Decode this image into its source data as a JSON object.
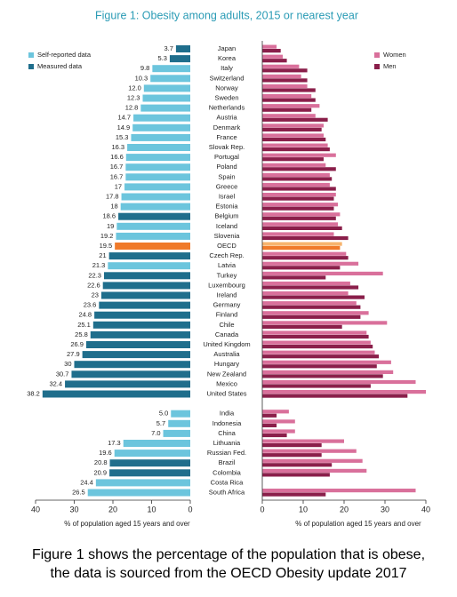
{
  "title": "Figure 1: Obesity among adults, 2015 or nearest year",
  "caption": "Figure 1 shows the percentage of the population that is obese, the data is sourced from the OECD Obesity update 2017",
  "chart_data": [
    {
      "type": "bar",
      "orientation": "horizontal",
      "categories": [
        "Japan",
        "Korea",
        "Italy",
        "Switzerland",
        "Norway",
        "Sweden",
        "Netherlands",
        "Austria",
        "Denmark",
        "France",
        "Slovak Rep.",
        "Portugal",
        "Poland",
        "Spain",
        "Greece",
        "Israel",
        "Estonia",
        "Belgium",
        "Iceland",
        "Slovenia",
        "OECD",
        "Czech Rep.",
        "Latvia",
        "Turkey",
        "Luxembourg",
        "Ireland",
        "Germany",
        "Finland",
        "Chile",
        "Canada",
        "United Kingdom",
        "Australia",
        "Hungary",
        "New Zealand",
        "Mexico",
        "United States",
        null,
        "India",
        "Indonesia",
        "China",
        "Lithuania",
        "Russian Fed.",
        "Brazil",
        "Colombia",
        "Costa Rica",
        "South Africa"
      ],
      "values": [
        3.7,
        5.3,
        9.8,
        10.3,
        12.0,
        12.3,
        12.8,
        14.7,
        14.9,
        15.3,
        16.3,
        16.6,
        16.7,
        16.7,
        17,
        17.8,
        18,
        18.6,
        19,
        19.2,
        19.5,
        21,
        21.3,
        22.3,
        22.6,
        23,
        23.6,
        24.8,
        25.1,
        25.8,
        26.9,
        27.9,
        30,
        30.7,
        32.4,
        38.2,
        null,
        5.0,
        5.7,
        7.0,
        17.3,
        19.6,
        20.8,
        20.9,
        24.4,
        26.5
      ],
      "value_labels": [
        "3.7",
        "5.3",
        "9.8",
        "10.3",
        "12.0",
        "12.3",
        "12.8",
        "14.7",
        "14.9",
        "15.3",
        "16.3",
        "16.6",
        "16.7",
        "16.7",
        "17",
        "17.8",
        "18",
        "18.6",
        "19",
        "19.2",
        "19.5",
        "21",
        "21.3",
        "22.3",
        "22.6",
        "23",
        "23.6",
        "24.8",
        "25.1",
        "25.8",
        "26.9",
        "27.9",
        "30",
        "30.7",
        "32.4",
        "38.2",
        null,
        "5.0",
        "5.7",
        "7.0",
        "17.3",
        "19.6",
        "20.8",
        "20.9",
        "24.4",
        "26.5"
      ],
      "bar_colors": [
        "#1f6e8c",
        "#1f6e8c",
        "#6cc5dd",
        "#6cc5dd",
        "#6cc5dd",
        "#6cc5dd",
        "#6cc5dd",
        "#6cc5dd",
        "#6cc5dd",
        "#6cc5dd",
        "#6cc5dd",
        "#6cc5dd",
        "#6cc5dd",
        "#6cc5dd",
        "#6cc5dd",
        "#6cc5dd",
        "#6cc5dd",
        "#1f6e8c",
        "#6cc5dd",
        "#6cc5dd",
        "#f07a2a",
        "#1f6e8c",
        "#6cc5dd",
        "#1f6e8c",
        "#1f6e8c",
        "#1f6e8c",
        "#1f6e8c",
        "#1f6e8c",
        "#1f6e8c",
        "#1f6e8c",
        "#1f6e8c",
        "#1f6e8c",
        "#1f6e8c",
        "#1f6e8c",
        "#1f6e8c",
        "#1f6e8c",
        null,
        "#6cc5dd",
        "#6cc5dd",
        "#6cc5dd",
        "#6cc5dd",
        "#6cc5dd",
        "#1f6e8c",
        "#1f6e8c",
        "#6cc5dd",
        "#6cc5dd"
      ],
      "legend": [
        {
          "name": "Self-reported data",
          "color": "#6cc5dd"
        },
        {
          "name": "Measured data",
          "color": "#1f6e8c"
        }
      ],
      "xlim": [
        40,
        0
      ],
      "xticks": [
        40,
        30,
        20,
        10,
        0
      ],
      "x_label": "% of population aged 15 years and over"
    },
    {
      "type": "grouped-bar",
      "orientation": "horizontal",
      "series": [
        {
          "name": "Women",
          "color": "#d9709b",
          "highlight_color": "#f7b46e",
          "values": [
            3.5,
            5,
            9,
            9.5,
            11,
            12,
            14,
            13,
            15,
            15,
            16,
            18,
            15.5,
            16.5,
            16.5,
            18,
            18.5,
            19,
            18.5,
            17.5,
            19.5,
            20.5,
            23.5,
            29.5,
            21.5,
            21,
            23,
            26,
            30.5,
            25.5,
            26.5,
            27.5,
            31.5,
            32,
            37.5,
            40,
            null,
            6.5,
            8,
            8,
            20,
            23,
            24.5,
            25.5,
            null,
            37.5
          ]
        },
        {
          "name": "Men",
          "color": "#8a1f4a",
          "highlight_color": "#f07a2a",
          "values": [
            4.5,
            6,
            11,
            11,
            13,
            13,
            12,
            16,
            14.5,
            15.5,
            16.5,
            15,
            18,
            17,
            18,
            17.5,
            17.5,
            18,
            19.5,
            21,
            19,
            21,
            19,
            15.5,
            23.5,
            25,
            24,
            24,
            19.5,
            26,
            27,
            28.5,
            28,
            29.5,
            26.5,
            35.5,
            null,
            3.5,
            3.5,
            6,
            14.5,
            14.5,
            17,
            16.5,
            null,
            15.5
          ]
        }
      ],
      "highlight_index": 20,
      "xlim": [
        0,
        40
      ],
      "xticks": [
        0,
        10,
        20,
        30,
        40
      ],
      "x_label": "% of population aged 15 years and over"
    }
  ]
}
